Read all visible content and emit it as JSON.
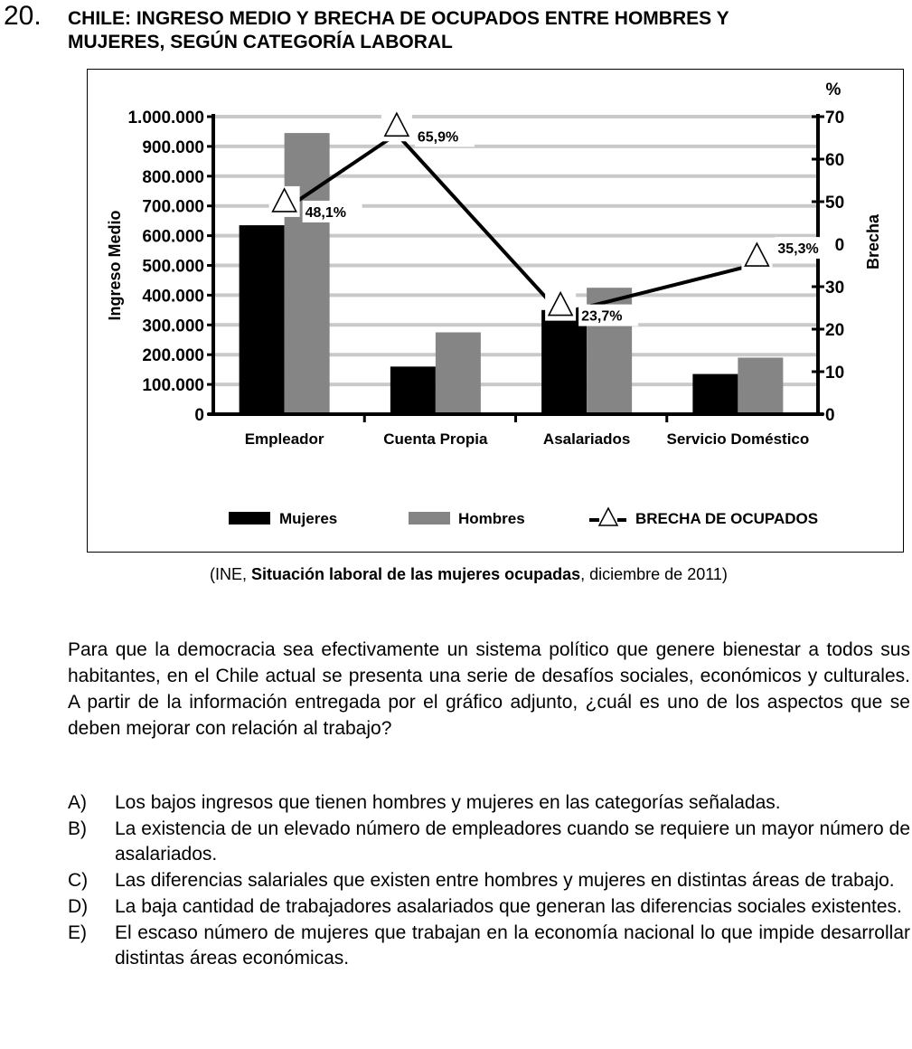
{
  "question": {
    "number": "20.",
    "title_lines": [
      "CHILE: INGRESO MEDIO Y BRECHA DE OCUPADOS ENTRE HOMBRES Y",
      "MUJERES, SEGÚN CATEGORÍA LABORAL"
    ]
  },
  "colors": {
    "mujeres": "#000000",
    "hombres": "#858585",
    "gridline": "#c9c9c9",
    "line": "#000000"
  },
  "chart_data": {
    "type": "bar",
    "categories": [
      "Empleador",
      "Cuenta Propia",
      "Asalariados",
      "Servicio Doméstico"
    ],
    "series": [
      {
        "name": "Mujeres",
        "type": "bar",
        "values": [
          635000,
          160000,
          350000,
          135000
        ]
      },
      {
        "name": "Hombres",
        "type": "bar",
        "values": [
          945000,
          275000,
          425000,
          190000
        ]
      },
      {
        "name": "BRECHA DE OCUPADOS",
        "type": "line",
        "axis": "right",
        "values": [
          48.1,
          65.9,
          23.7,
          35.3
        ],
        "labels": [
          "48,1%",
          "65,9%",
          "23,7%",
          "35,3%"
        ]
      }
    ],
    "ylabel": "Ingreso Medio",
    "ylim": [
      0,
      1000000
    ],
    "yticks": [
      "0",
      "100.000",
      "200.000",
      "300.000",
      "400.000",
      "500.000",
      "600.000",
      "700.000",
      "800.000",
      "900.000",
      "1.000.000"
    ],
    "y2label": "Brecha",
    "y2unit": "%",
    "y2lim": [
      0,
      70
    ],
    "y2ticks": [
      "0",
      "10",
      "20",
      "30",
      "40",
      "50",
      "60",
      "70"
    ],
    "grid": true,
    "legend": {
      "position": "bottom",
      "entries": [
        "Mujeres",
        "Hombres",
        "BRECHA DE OCUPADOS"
      ]
    }
  },
  "source": {
    "prefix": "(INE, ",
    "title": "Situación laboral de las mujeres ocupadas",
    "suffix": ", diciembre de 2011)"
  },
  "prompt": "Para que la democracia sea efectivamente un sistema político que genere bienestar a todos sus habitantes, en el Chile actual se presenta una serie de desafíos sociales, económicos y culturales. A partir de la información entregada por el gráfico adjunto, ¿cuál es uno de los aspectos que se deben mejorar con relación al trabajo?",
  "options": [
    {
      "letter": "A)",
      "text": "Los bajos ingresos que tienen hombres y mujeres en las categorías señaladas."
    },
    {
      "letter": "B)",
      "text": "La existencia de un elevado número de empleadores cuando se requiere un mayor número de asalariados."
    },
    {
      "letter": "C)",
      "text": "Las diferencias salariales que existen entre hombres y mujeres en distintas áreas de trabajo."
    },
    {
      "letter": "D)",
      "text": "La baja cantidad de trabajadores asalariados que generan las diferencias sociales existentes."
    },
    {
      "letter": "E)",
      "text": "El escaso número de mujeres que trabajan en la economía nacional lo que impide desarrollar distintas áreas económicas."
    }
  ]
}
